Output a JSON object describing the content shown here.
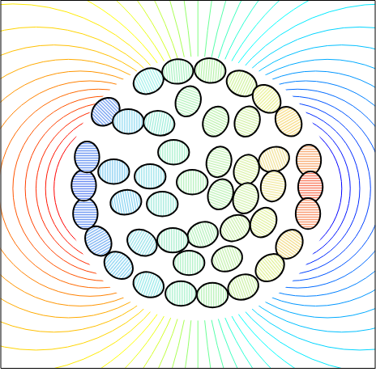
{
  "chart_data": {
    "type": "contour",
    "xlim": [
      -1.525,
      1.369
    ],
    "ylim": [
      -1.388,
      1.456
    ],
    "tick_labels": false,
    "clim": [
      -1.2,
      1.2
    ],
    "levels": [
      -0.9,
      -0.85,
      -0.8,
      -0.75,
      -0.7,
      -0.65,
      -0.6,
      -0.55,
      -0.5,
      -0.45,
      -0.4,
      -0.35,
      -0.3,
      -0.25,
      -0.2,
      -0.15,
      -0.1,
      -0.05,
      0,
      0.05,
      0.1,
      0.15,
      0.2,
      0.25,
      0.3,
      0.35,
      0.4,
      0.45,
      0.5,
      0.55,
      0.6,
      0.65,
      0.7,
      0.75,
      0.8,
      0.85,
      0.9
    ],
    "semi_axes": [
      0.12,
      0.095
    ],
    "ellipses": [
      {
        "x": -0.381,
        "y": 0.831,
        "angle": 25,
        "color": "#9ff0ea"
      },
      {
        "x": -0.156,
        "y": 0.906,
        "angle": 5,
        "color": "#a6f2c0"
      },
      {
        "x": 0.094,
        "y": 0.913,
        "angle": -5,
        "color": "#b4f2a8"
      },
      {
        "x": 0.338,
        "y": 0.813,
        "angle": -25,
        "color": "#cdf29a"
      },
      {
        "x": 0.531,
        "y": 0.694,
        "angle": -45,
        "color": "#e8f08c"
      },
      {
        "x": 0.7,
        "y": 0.519,
        "angle": -60,
        "color": "#f6d878"
      },
      {
        "x": 0.856,
        "y": 0.219,
        "angle": 90,
        "color": "#f8a060"
      },
      {
        "x": 0.869,
        "y": 0.0125,
        "angle": 90,
        "color": "#f86848"
      },
      {
        "x": 0.85,
        "y": -0.194,
        "angle": 90,
        "color": "#f88858"
      },
      {
        "x": 0.706,
        "y": -0.431,
        "angle": 55,
        "color": "#f0d880"
      },
      {
        "x": 0.556,
        "y": -0.6125,
        "angle": 40,
        "color": "#e0f090"
      },
      {
        "x": 0.35,
        "y": -0.7625,
        "angle": 20,
        "color": "#c8f0a0"
      },
      {
        "x": 0.1125,
        "y": -0.825,
        "angle": 0,
        "color": "#b0f0b0"
      },
      {
        "x": -0.131,
        "y": -0.8125,
        "angle": 0,
        "color": "#a0f0c8"
      },
      {
        "x": -0.381,
        "y": -0.744,
        "angle": -20,
        "color": "#90e8e8"
      },
      {
        "x": -0.6125,
        "y": -0.594,
        "angle": -40,
        "color": "#80d0f0"
      },
      {
        "x": -0.769,
        "y": -0.406,
        "angle": -60,
        "color": "#6aa8f0"
      },
      {
        "x": -0.869,
        "y": -0.194,
        "angle": 90,
        "color": "#5888f0"
      },
      {
        "x": -0.881,
        "y": 0.025,
        "angle": 90,
        "color": "#5078f0"
      },
      {
        "x": -0.856,
        "y": 0.244,
        "angle": 90,
        "color": "#5888f0"
      },
      {
        "x": -0.7125,
        "y": 0.594,
        "angle": 45,
        "color": "#6898f0"
      },
      {
        "x": -0.5375,
        "y": 0.519,
        "angle": 0,
        "color": "#88d8f0"
      },
      {
        "x": -0.075,
        "y": 0.675,
        "angle": 70,
        "color": "#b0f0b8"
      },
      {
        "x": 0.1375,
        "y": 0.519,
        "angle": 65,
        "color": "#b8f0a8"
      },
      {
        "x": 0.381,
        "y": 0.519,
        "angle": 70,
        "color": "#d0f0a0"
      },
      {
        "x": 0.5875,
        "y": 0.225,
        "angle": 20,
        "color": "#f0e090"
      },
      {
        "x": 0.581,
        "y": 0.019,
        "angle": 80,
        "color": "#f0e898"
      },
      {
        "x": 0.375,
        "y": 0.144,
        "angle": 70,
        "color": "#d8f0a0"
      },
      {
        "x": 0.1625,
        "y": 0.206,
        "angle": 75,
        "color": "#c0f0b0"
      },
      {
        "x": -0.044,
        "y": 0.05,
        "angle": 0,
        "color": "#b0f0b8"
      },
      {
        "x": -0.1875,
        "y": 0.281,
        "angle": 0,
        "color": "#a0f0c8"
      },
      {
        "x": -0.3,
        "y": 0.506,
        "angle": -10,
        "color": "#98ecd8"
      },
      {
        "x": -0.65,
        "y": 0.131,
        "angle": 0,
        "color": "#78c8f0"
      },
      {
        "x": -0.369,
        "y": 0.094,
        "angle": 0,
        "color": "#90e0e8"
      },
      {
        "x": -0.556,
        "y": -0.106,
        "angle": 10,
        "color": "#80d0f0"
      },
      {
        "x": -0.275,
        "y": -0.119,
        "angle": 0,
        "color": "#98e8d8"
      },
      {
        "x": 0.175,
        "y": -0.044,
        "angle": 70,
        "color": "#b8f0b0"
      },
      {
        "x": 0.369,
        "y": -0.075,
        "angle": 70,
        "color": "#d0f0a8"
      },
      {
        "x": 0.2875,
        "y": -0.306,
        "angle": 30,
        "color": "#c8f0a8"
      },
      {
        "x": 0.506,
        "y": -0.2625,
        "angle": 60,
        "color": "#e0f098"
      },
      {
        "x": 0.0375,
        "y": -0.356,
        "angle": 20,
        "color": "#b0f0b8"
      },
      {
        "x": -0.194,
        "y": -0.4,
        "angle": 0,
        "color": "#a0ecc8"
      },
      {
        "x": -0.431,
        "y": -0.419,
        "angle": -30,
        "color": "#90e0e8"
      },
      {
        "x": -0.069,
        "y": -0.575,
        "angle": 0,
        "color": "#a8f0c0"
      },
      {
        "x": 0.225,
        "y": -0.544,
        "angle": 20,
        "color": "#c0f0a8"
      }
    ]
  }
}
